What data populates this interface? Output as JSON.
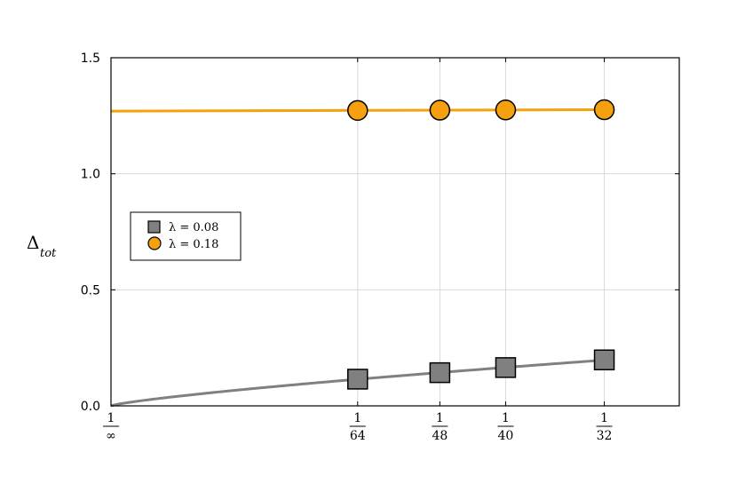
{
  "chart_data": {
    "type": "line",
    "title": "",
    "xlabel": "",
    "ylabel": "Δ",
    "ylabel_subscript": "tot",
    "x_scale": "reciprocal",
    "x_ticks": [
      {
        "num": "1",
        "den": "∞"
      },
      {
        "num": "1",
        "den": "64"
      },
      {
        "num": "1",
        "den": "48"
      },
      {
        "num": "1",
        "den": "40"
      },
      {
        "num": "1",
        "den": "32"
      }
    ],
    "y_ticks": [
      "0.0",
      "0.5",
      "1.0",
      "1.5"
    ],
    "ylim": [
      0,
      1.5
    ],
    "grid": true,
    "legend_position": "left",
    "series": [
      {
        "name": "λ = 0.08",
        "marker": "square",
        "color": "#808080",
        "points_x": [
          "1/64",
          "1/48",
          "1/40",
          "1/32"
        ],
        "points_y": [
          0.115,
          0.143,
          0.165,
          0.198
        ]
      },
      {
        "name": "λ = 0.18",
        "marker": "circle",
        "color": "#f5a00f",
        "points_x": [
          "1/64",
          "1/48",
          "1/40",
          "1/32"
        ],
        "points_y": [
          1.273,
          1.274,
          1.275,
          1.276
        ]
      }
    ]
  }
}
